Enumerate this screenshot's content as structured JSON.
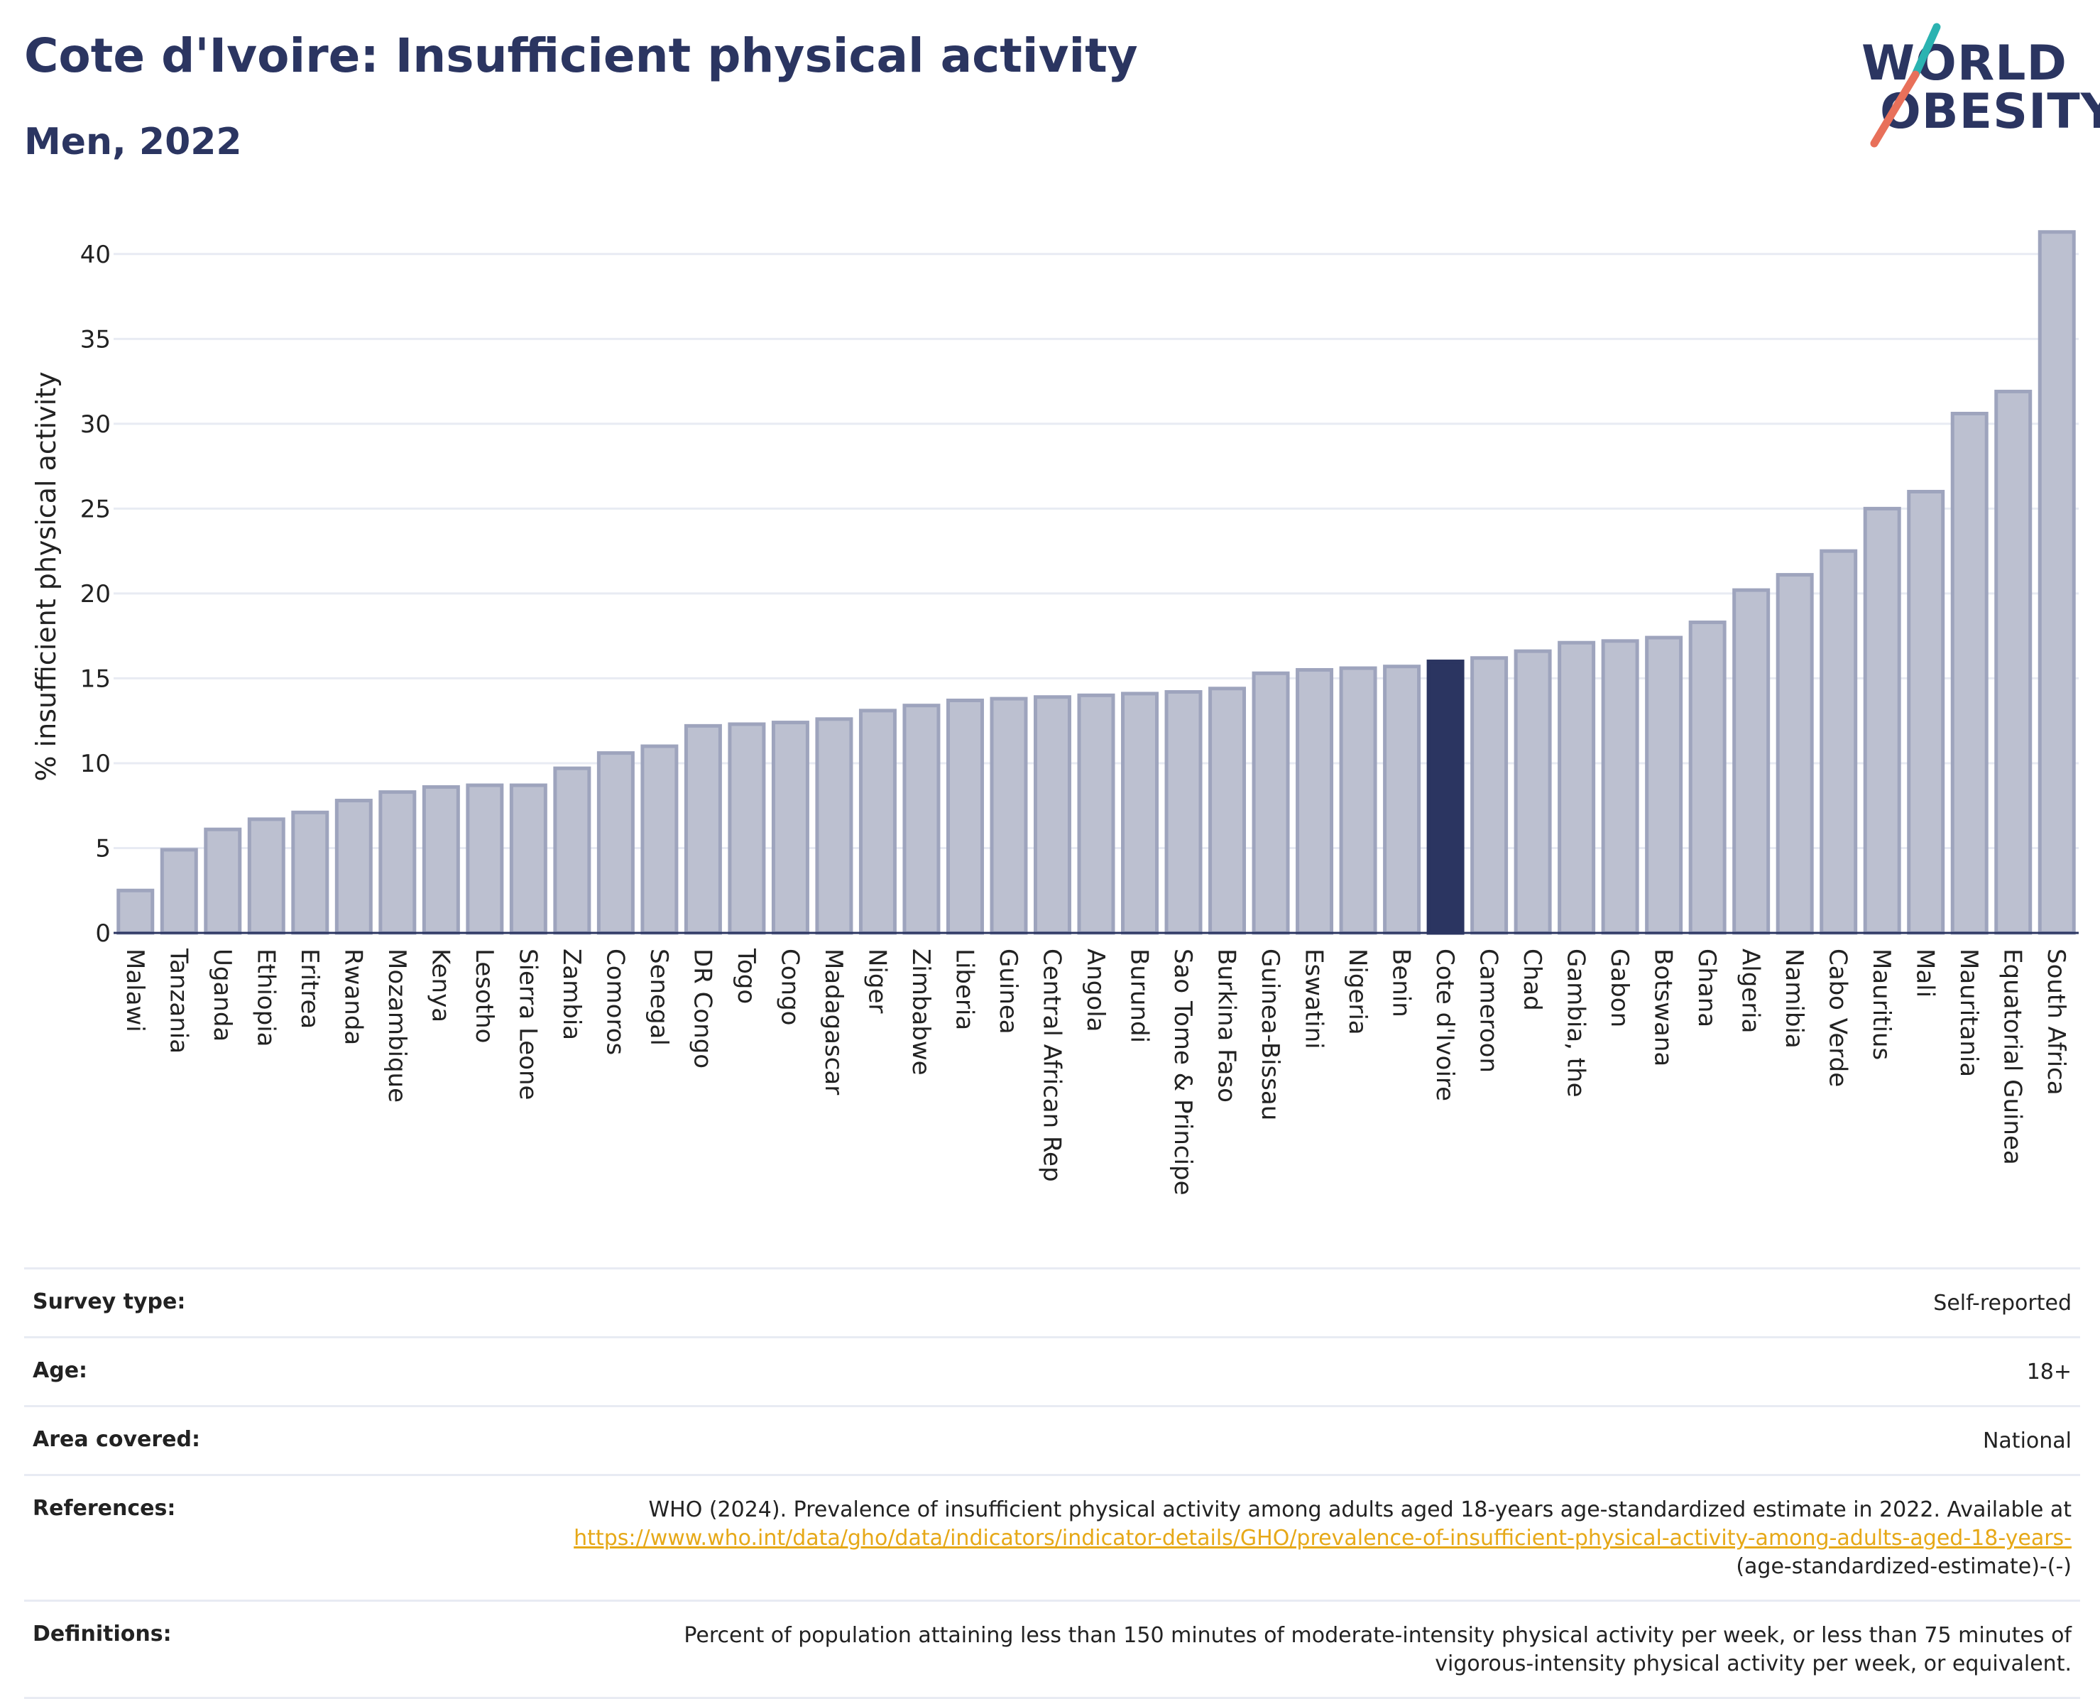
{
  "header": {
    "title": "Cote d'Ivoire: Insufficient physical activity",
    "subtitle": "Men, 2022"
  },
  "logo": {
    "line1": "WORLD",
    "line2": "OBESITY",
    "colors": {
      "text": "#2b3561",
      "slash_top": "#2bb3b1",
      "slash_bottom": "#e8705a"
    }
  },
  "colors": {
    "bar_default": "#bcc0d0",
    "bar_border": "#9ea4bd",
    "bar_highlight": "#2b3561",
    "grid": "#e8ebf3",
    "axis": "#2b3561",
    "text": "#222222",
    "link": "#e6a817"
  },
  "chart_data": {
    "type": "bar",
    "title": "",
    "xlabel": "",
    "ylabel": "% insufficient physical activity",
    "ylim": [
      0,
      42
    ],
    "yticks": [
      0,
      5,
      10,
      15,
      20,
      25,
      30,
      35,
      40
    ],
    "grid": true,
    "highlight": "Cote d'Ivoire",
    "categories": [
      "Malawi",
      "Tanzania",
      "Uganda",
      "Ethiopia",
      "Eritrea",
      "Rwanda",
      "Mozambique",
      "Kenya",
      "Lesotho",
      "Sierra Leone",
      "Zambia",
      "Comoros",
      "Senegal",
      "DR Congo",
      "Togo",
      "Congo",
      "Madagascar",
      "Niger",
      "Zimbabwe",
      "Liberia",
      "Guinea",
      "Central African Rep",
      "Angola",
      "Burundi",
      "Sao Tome & Principe",
      "Burkina Faso",
      "Guinea-Bissau",
      "Eswatini",
      "Nigeria",
      "Benin",
      "Cote d'Ivoire",
      "Cameroon",
      "Chad",
      "Gambia, the",
      "Gabon",
      "Botswana",
      "Ghana",
      "Algeria",
      "Namibia",
      "Cabo Verde",
      "Mauritius",
      "Mali",
      "Mauritania",
      "Equatorial Guinea",
      "South Africa"
    ],
    "values": [
      2.5,
      4.9,
      6.1,
      6.7,
      7.1,
      7.8,
      8.3,
      8.6,
      8.7,
      8.7,
      9.7,
      10.6,
      11.0,
      12.2,
      12.3,
      12.4,
      12.6,
      13.1,
      13.4,
      13.7,
      13.8,
      13.9,
      14.0,
      14.1,
      14.2,
      14.4,
      15.3,
      15.5,
      15.6,
      15.7,
      16.0,
      16.2,
      16.6,
      17.1,
      17.2,
      17.4,
      18.3,
      20.2,
      21.1,
      22.5,
      25.0,
      26.0,
      30.6,
      31.9,
      41.3
    ]
  },
  "info": {
    "survey_type_label": "Survey type:",
    "survey_type_value": "Self-reported",
    "age_label": "Age:",
    "age_value": "18+",
    "area_label": "Area covered:",
    "area_value": "National",
    "references_label": "References:",
    "references_text": "WHO (2024). Prevalence of insufficient physical activity among adults aged 18-years age-standardized estimate in 2022. Available at",
    "references_link": "https://www.who.int/data/gho/data/indicators/indicator-details/GHO/prevalence-of-insufficient-physical-activity-among-adults-aged-18-years-",
    "references_suffix": "(age-standardized-estimate)-(-)",
    "definitions_label": "Definitions:",
    "definitions_line1": "Percent of population attaining less than 150 minutes of moderate-intensity physical activity per week, or less than 75 minutes of",
    "definitions_line2": "vigorous-intensity physical activity per week, or equivalent."
  }
}
